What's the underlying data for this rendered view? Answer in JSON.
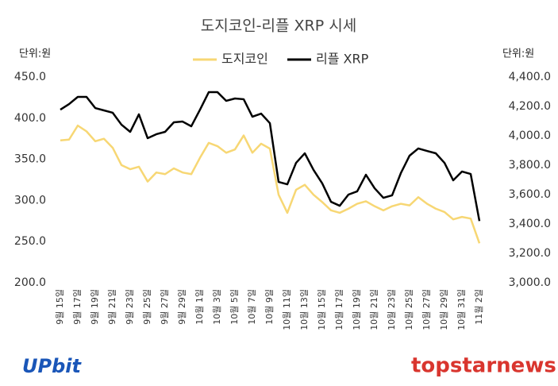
{
  "chart_data": {
    "type": "line",
    "title": "도지코인-리플 XRP 시세",
    "ylabel": "단위:원",
    "y2label": "단위:원",
    "watermarks": [
      "UPbit",
      "topstarnews"
    ],
    "legend": "top",
    "grid": false,
    "categories": [
      "9월 15일",
      null,
      "9월 17일",
      null,
      "9월 19일",
      null,
      "9월 21일",
      null,
      "9월 23일",
      null,
      "9월 25일",
      null,
      "9월 27일",
      null,
      "9월 29일",
      null,
      "10월 1일",
      null,
      "10월 3일",
      null,
      "10월 5일",
      null,
      "10월 7일",
      null,
      "10월 9일",
      null,
      "10월 11일",
      null,
      "10월 13일",
      null,
      "10월 15일",
      null,
      "10월 17일",
      null,
      "10월 19일",
      null,
      "10월 21일",
      null,
      "10월 23일",
      null,
      "10월 25일",
      null,
      "10월 27일",
      null,
      "10월 29일",
      null,
      "10월 31일",
      null,
      "11월 2일"
    ],
    "ylim": [
      200,
      450
    ],
    "yticks": [
      {
        "value": 200,
        "label": "200.0"
      },
      {
        "value": 250,
        "label": "250.0"
      },
      {
        "value": 300,
        "label": "300.0"
      },
      {
        "value": 350,
        "label": "350.0"
      },
      {
        "value": 400,
        "label": "400.0"
      },
      {
        "value": 450,
        "label": "450.0"
      }
    ],
    "y2lim": [
      3000,
      4400
    ],
    "y2ticks": [
      {
        "value": 3000,
        "label": "3,000.0"
      },
      {
        "value": 3200,
        "label": "3,200.0"
      },
      {
        "value": 3400,
        "label": "3,400.0"
      },
      {
        "value": 3600,
        "label": "3,600.0"
      },
      {
        "value": 3800,
        "label": "3,800.0"
      },
      {
        "value": 4000,
        "label": "4,000.0"
      },
      {
        "value": 4200,
        "label": "4,200.0"
      },
      {
        "value": 4400,
        "label": "4,400.0"
      }
    ],
    "series": [
      {
        "name": "도지코인",
        "color": "#f7d774",
        "axis": "y",
        "values": [
          373,
          374,
          391,
          384,
          372,
          375,
          364,
          343,
          338,
          341,
          323,
          334,
          332,
          339,
          334,
          332,
          352,
          370,
          366,
          358,
          362,
          379,
          358,
          369,
          363,
          307,
          285,
          313,
          319,
          307,
          298,
          288,
          285,
          290,
          296,
          299,
          293,
          288,
          293,
          296,
          294,
          304,
          296,
          290,
          286,
          277,
          280,
          278,
          248
        ]
      },
      {
        "name": "리플 XRP",
        "color": "#000000",
        "axis": "y2",
        "values": [
          4178,
          4216,
          4265,
          4265,
          4189,
          4173,
          4157,
          4076,
          4027,
          4146,
          3984,
          4011,
          4027,
          4092,
          4097,
          4065,
          4178,
          4297,
          4297,
          4238,
          4254,
          4249,
          4130,
          4151,
          4086,
          3686,
          3670,
          3816,
          3881,
          3768,
          3676,
          3551,
          3524,
          3600,
          3622,
          3735,
          3643,
          3578,
          3595,
          3746,
          3865,
          3914,
          3897,
          3881,
          3816,
          3697,
          3757,
          3740,
          3420
        ]
      }
    ]
  }
}
